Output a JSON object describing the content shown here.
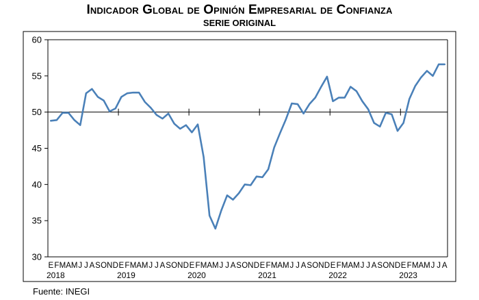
{
  "title": "Indicador Global de Opinión Empresarial de Confianza",
  "subtitle": "SERIE ORIGINAL",
  "source": "Fuente: INEGI",
  "colors": {
    "line": "#4a80b8",
    "axis": "#000000",
    "frame": "#000000"
  },
  "chart_data": {
    "type": "line",
    "title": "Indicador Global de Opinión Empresarial de Confianza",
    "subtitle": "SERIE ORIGINAL",
    "ylim": [
      30,
      60
    ],
    "yticks": [
      30,
      35,
      40,
      45,
      50,
      55,
      60
    ],
    "reference_line": 50,
    "month_labels": [
      "E",
      "F",
      "M",
      "A",
      "M",
      "J",
      "J",
      "A",
      "S",
      "O",
      "N",
      "D"
    ],
    "years": [
      "2018",
      "2019",
      "2020",
      "2021",
      "2022",
      "2023"
    ],
    "last_year_months": [
      "E",
      "F",
      "M",
      "A",
      "M",
      "J",
      "J",
      "A"
    ],
    "grid": false,
    "series": [
      {
        "values": [
          48.8,
          48.9,
          49.9,
          49.9,
          48.9,
          48.2,
          52.6,
          53.2,
          52.1,
          51.6,
          50.1,
          50.5,
          52.1,
          52.6,
          52.7,
          52.7,
          51.4,
          50.6,
          49.6,
          49.1,
          49.8,
          48.4,
          47.7,
          48.2,
          47.2,
          48.3,
          43.8,
          35.7,
          33.9,
          36.4,
          38.5,
          37.9,
          38.8,
          40.0,
          39.9,
          41.1,
          41.0,
          42.1,
          45.1,
          47.1,
          49.0,
          51.2,
          51.1,
          49.8,
          51.1,
          52.0,
          53.5,
          54.9,
          51.5,
          52.0,
          52.0,
          53.5,
          52.9,
          51.5,
          50.4,
          48.5,
          48.0,
          49.9,
          49.7,
          47.4,
          48.5,
          51.8,
          53.6,
          54.8,
          55.7,
          55.0,
          56.6,
          56.6
        ]
      }
    ]
  }
}
